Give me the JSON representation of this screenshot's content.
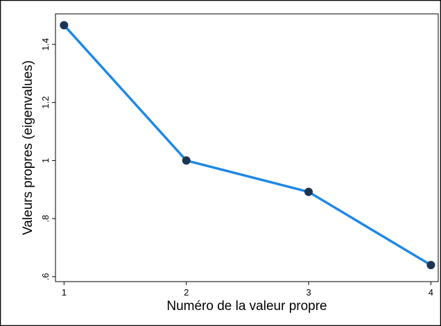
{
  "chart_data": {
    "type": "line",
    "xlabel": "Numéro de la valeur propre",
    "ylabel": "Valeurs propres (eigenvalues)",
    "x": [
      1,
      2,
      3,
      4
    ],
    "series": [
      {
        "color": "#1e88e5",
        "marker_color": "#1c3553",
        "values": [
          1.466,
          1.0,
          0.892,
          0.64
        ]
      }
    ],
    "xlim": [
      0.93,
      4.06
    ],
    "xticks": [
      1,
      2,
      3,
      4
    ],
    "ylim": [
      0.583,
      1.505
    ],
    "yticks": [
      {
        "value": 0.6,
        "label": ".6"
      },
      {
        "value": 0.8,
        "label": ".8"
      },
      1,
      {
        "value": 1.2,
        "label": "1.2"
      },
      {
        "value": 1.4,
        "label": "1.4"
      }
    ],
    "grid": false
  }
}
